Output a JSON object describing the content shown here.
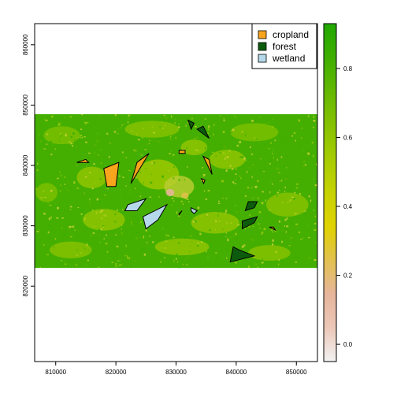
{
  "map": {
    "x_ticks": [
      "810000",
      "820000",
      "830000",
      "840000",
      "850000"
    ],
    "x_tick_values": [
      810000,
      820000,
      830000,
      840000,
      850000
    ],
    "y_ticks": [
      "820000",
      "830000",
      "840000",
      "850000",
      "860000"
    ],
    "y_tick_values": [
      820000,
      830000,
      840000,
      850000,
      860000
    ],
    "x_range": [
      806500,
      853500
    ],
    "y_range": [
      807500,
      863500
    ],
    "raster_extent": {
      "x": [
        806500,
        853500
      ],
      "y": [
        823000,
        848500
      ]
    },
    "colorbar": {
      "ticks": [
        "0.0",
        "0.2",
        "0.4",
        "0.6",
        "0.8"
      ],
      "tick_values": [
        0.0,
        0.2,
        0.4,
        0.6,
        0.8
      ],
      "range": [
        -0.05,
        0.93
      ],
      "colors": [
        "#f2f2f2",
        "#ecc7b8",
        "#e6b59b",
        "#e3c150",
        "#e0d200",
        "#c6d200",
        "#a7cc00",
        "#86c200",
        "#64b800",
        "#3eae00",
        "#22a800"
      ]
    },
    "legend": {
      "placement": "top-right",
      "items": [
        {
          "label": "cropland",
          "color": "#f7a51c"
        },
        {
          "label": "forest",
          "color": "#0d5c0d"
        },
        {
          "label": "wetland",
          "color": "#b5d8ea"
        }
      ]
    },
    "polygons": [
      {
        "cls": "cropland",
        "pts": [
          [
            818000,
            839500
          ],
          [
            820500,
            840500
          ],
          [
            820000,
            836500
          ],
          [
            818500,
            836500
          ]
        ]
      },
      {
        "cls": "cropland",
        "pts": [
          [
            823500,
            840500
          ],
          [
            825500,
            842000
          ],
          [
            822500,
            837000
          ]
        ]
      },
      {
        "cls": "cropland",
        "pts": [
          [
            813500,
            840500
          ],
          [
            815000,
            841000
          ],
          [
            815500,
            840500
          ]
        ]
      },
      {
        "cls": "cropland",
        "pts": [
          [
            830500,
            842500
          ],
          [
            831500,
            842500
          ],
          [
            831500,
            842000
          ],
          [
            830500,
            842000
          ]
        ]
      },
      {
        "cls": "cropland",
        "pts": [
          [
            834500,
            841500
          ],
          [
            835500,
            841000
          ],
          [
            836000,
            838500
          ]
        ]
      },
      {
        "cls": "cropland",
        "pts": [
          [
            834200,
            837800
          ],
          [
            834600,
            837000
          ],
          [
            834800,
            837600
          ]
        ]
      },
      {
        "cls": "cropland",
        "pts": [
          [
            845500,
            829800
          ],
          [
            846500,
            829300
          ],
          [
            846200,
            829800
          ]
        ]
      },
      {
        "cls": "forest",
        "pts": [
          [
            832000,
            847500
          ],
          [
            833000,
            847000
          ],
          [
            832500,
            846000
          ]
        ]
      },
      {
        "cls": "forest",
        "pts": [
          [
            833500,
            846000
          ],
          [
            834500,
            846500
          ],
          [
            835500,
            844500
          ]
        ]
      },
      {
        "cls": "forest",
        "pts": [
          [
            842000,
            834000
          ],
          [
            843500,
            834000
          ],
          [
            843000,
            833000
          ],
          [
            841500,
            832500
          ]
        ]
      },
      {
        "cls": "forest",
        "pts": [
          [
            841000,
            830800
          ],
          [
            843500,
            831500
          ],
          [
            843000,
            830500
          ],
          [
            841000,
            829500
          ]
        ]
      },
      {
        "cls": "forest",
        "pts": [
          [
            839500,
            826500
          ],
          [
            840500,
            826000
          ],
          [
            843000,
            825000
          ],
          [
            839000,
            824000
          ]
        ]
      },
      {
        "cls": "wetland",
        "pts": [
          [
            822000,
            833500
          ],
          [
            825000,
            834500
          ],
          [
            823500,
            832500
          ],
          [
            821500,
            832500
          ]
        ]
      },
      {
        "cls": "wetland",
        "pts": [
          [
            824500,
            831500
          ],
          [
            828500,
            833500
          ],
          [
            827000,
            831000
          ],
          [
            825000,
            829500
          ]
        ]
      },
      {
        "cls": "wetland",
        "pts": [
          [
            832500,
            833000
          ],
          [
            833500,
            832500
          ],
          [
            833000,
            832000
          ],
          [
            832500,
            832500
          ]
        ]
      },
      {
        "cls": "wetland",
        "pts": [
          [
            830500,
            832000
          ],
          [
            831000,
            832500
          ],
          [
            830500,
            831800
          ]
        ]
      }
    ],
    "patches": [
      {
        "x": 816000,
        "y": 838000,
        "rx": 2500,
        "ry": 1800,
        "color": "#8fc400"
      },
      {
        "x": 827000,
        "y": 838500,
        "rx": 3500,
        "ry": 2500,
        "color": "#9cc800"
      },
      {
        "x": 830500,
        "y": 836500,
        "rx": 2500,
        "ry": 1800,
        "color": "#b8cc30"
      },
      {
        "x": 829000,
        "y": 835500,
        "rx": 700,
        "ry": 600,
        "color": "#e6b59b"
      },
      {
        "x": 831500,
        "y": 835000,
        "rx": 600,
        "ry": 500,
        "color": "#e3c150"
      },
      {
        "x": 838500,
        "y": 841000,
        "rx": 3000,
        "ry": 1600,
        "color": "#8fc400"
      },
      {
        "x": 811000,
        "y": 845000,
        "rx": 3000,
        "ry": 1500,
        "color": "#7abf00"
      },
      {
        "x": 826000,
        "y": 846000,
        "rx": 4500,
        "ry": 1400,
        "color": "#86c200"
      },
      {
        "x": 843000,
        "y": 845500,
        "rx": 4000,
        "ry": 1500,
        "color": "#7abf00"
      },
      {
        "x": 818000,
        "y": 831000,
        "rx": 3500,
        "ry": 1800,
        "color": "#8fc400"
      },
      {
        "x": 836500,
        "y": 830500,
        "rx": 4000,
        "ry": 1800,
        "color": "#8fc400"
      },
      {
        "x": 848500,
        "y": 833500,
        "rx": 3500,
        "ry": 2000,
        "color": "#86c200"
      },
      {
        "x": 812500,
        "y": 826000,
        "rx": 3500,
        "ry": 1400,
        "color": "#86c200"
      },
      {
        "x": 831000,
        "y": 826500,
        "rx": 4500,
        "ry": 1400,
        "color": "#8fc400"
      },
      {
        "x": 845500,
        "y": 825500,
        "rx": 3500,
        "ry": 1300,
        "color": "#86c200"
      },
      {
        "x": 808500,
        "y": 835500,
        "rx": 1800,
        "ry": 1600,
        "color": "#7abf00"
      },
      {
        "x": 833000,
        "y": 843000,
        "rx": 2200,
        "ry": 1300,
        "color": "#8fc400"
      }
    ]
  }
}
